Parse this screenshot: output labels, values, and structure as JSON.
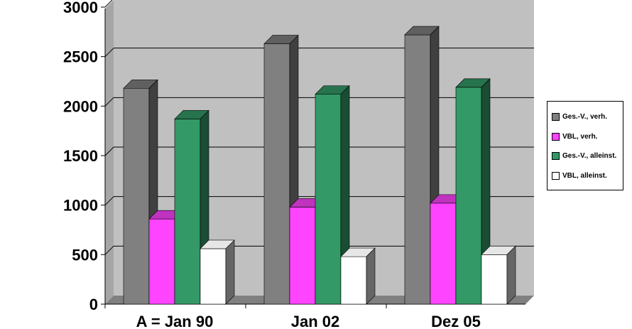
{
  "chart_data": {
    "type": "bar",
    "title": "",
    "xlabel": "",
    "ylabel": "",
    "ylim": [
      0,
      3000
    ],
    "yticks": [
      "0",
      "500",
      "1000",
      "1500",
      "2000",
      "2500",
      "3000"
    ],
    "categories": [
      "A = Jan 90",
      "Jan 02",
      "Dez 05"
    ],
    "series": [
      {
        "name": "Ges.-V., verh.",
        "values": [
          2180,
          2630,
          2720
        ],
        "color": "#808080"
      },
      {
        "name": "VBL, verh.",
        "values": [
          860,
          980,
          1020
        ],
        "color": "#ff44ff"
      },
      {
        "name": "Ges.-V., alleinst.",
        "values": [
          1870,
          2120,
          2190
        ],
        "color": "#339966"
      },
      {
        "name": "VBL, alleinst.",
        "values": [
          560,
          480,
          500
        ],
        "color": "#ffffff"
      }
    ],
    "grid": true,
    "legend_position": "right",
    "style": "3d-clustered-column"
  }
}
